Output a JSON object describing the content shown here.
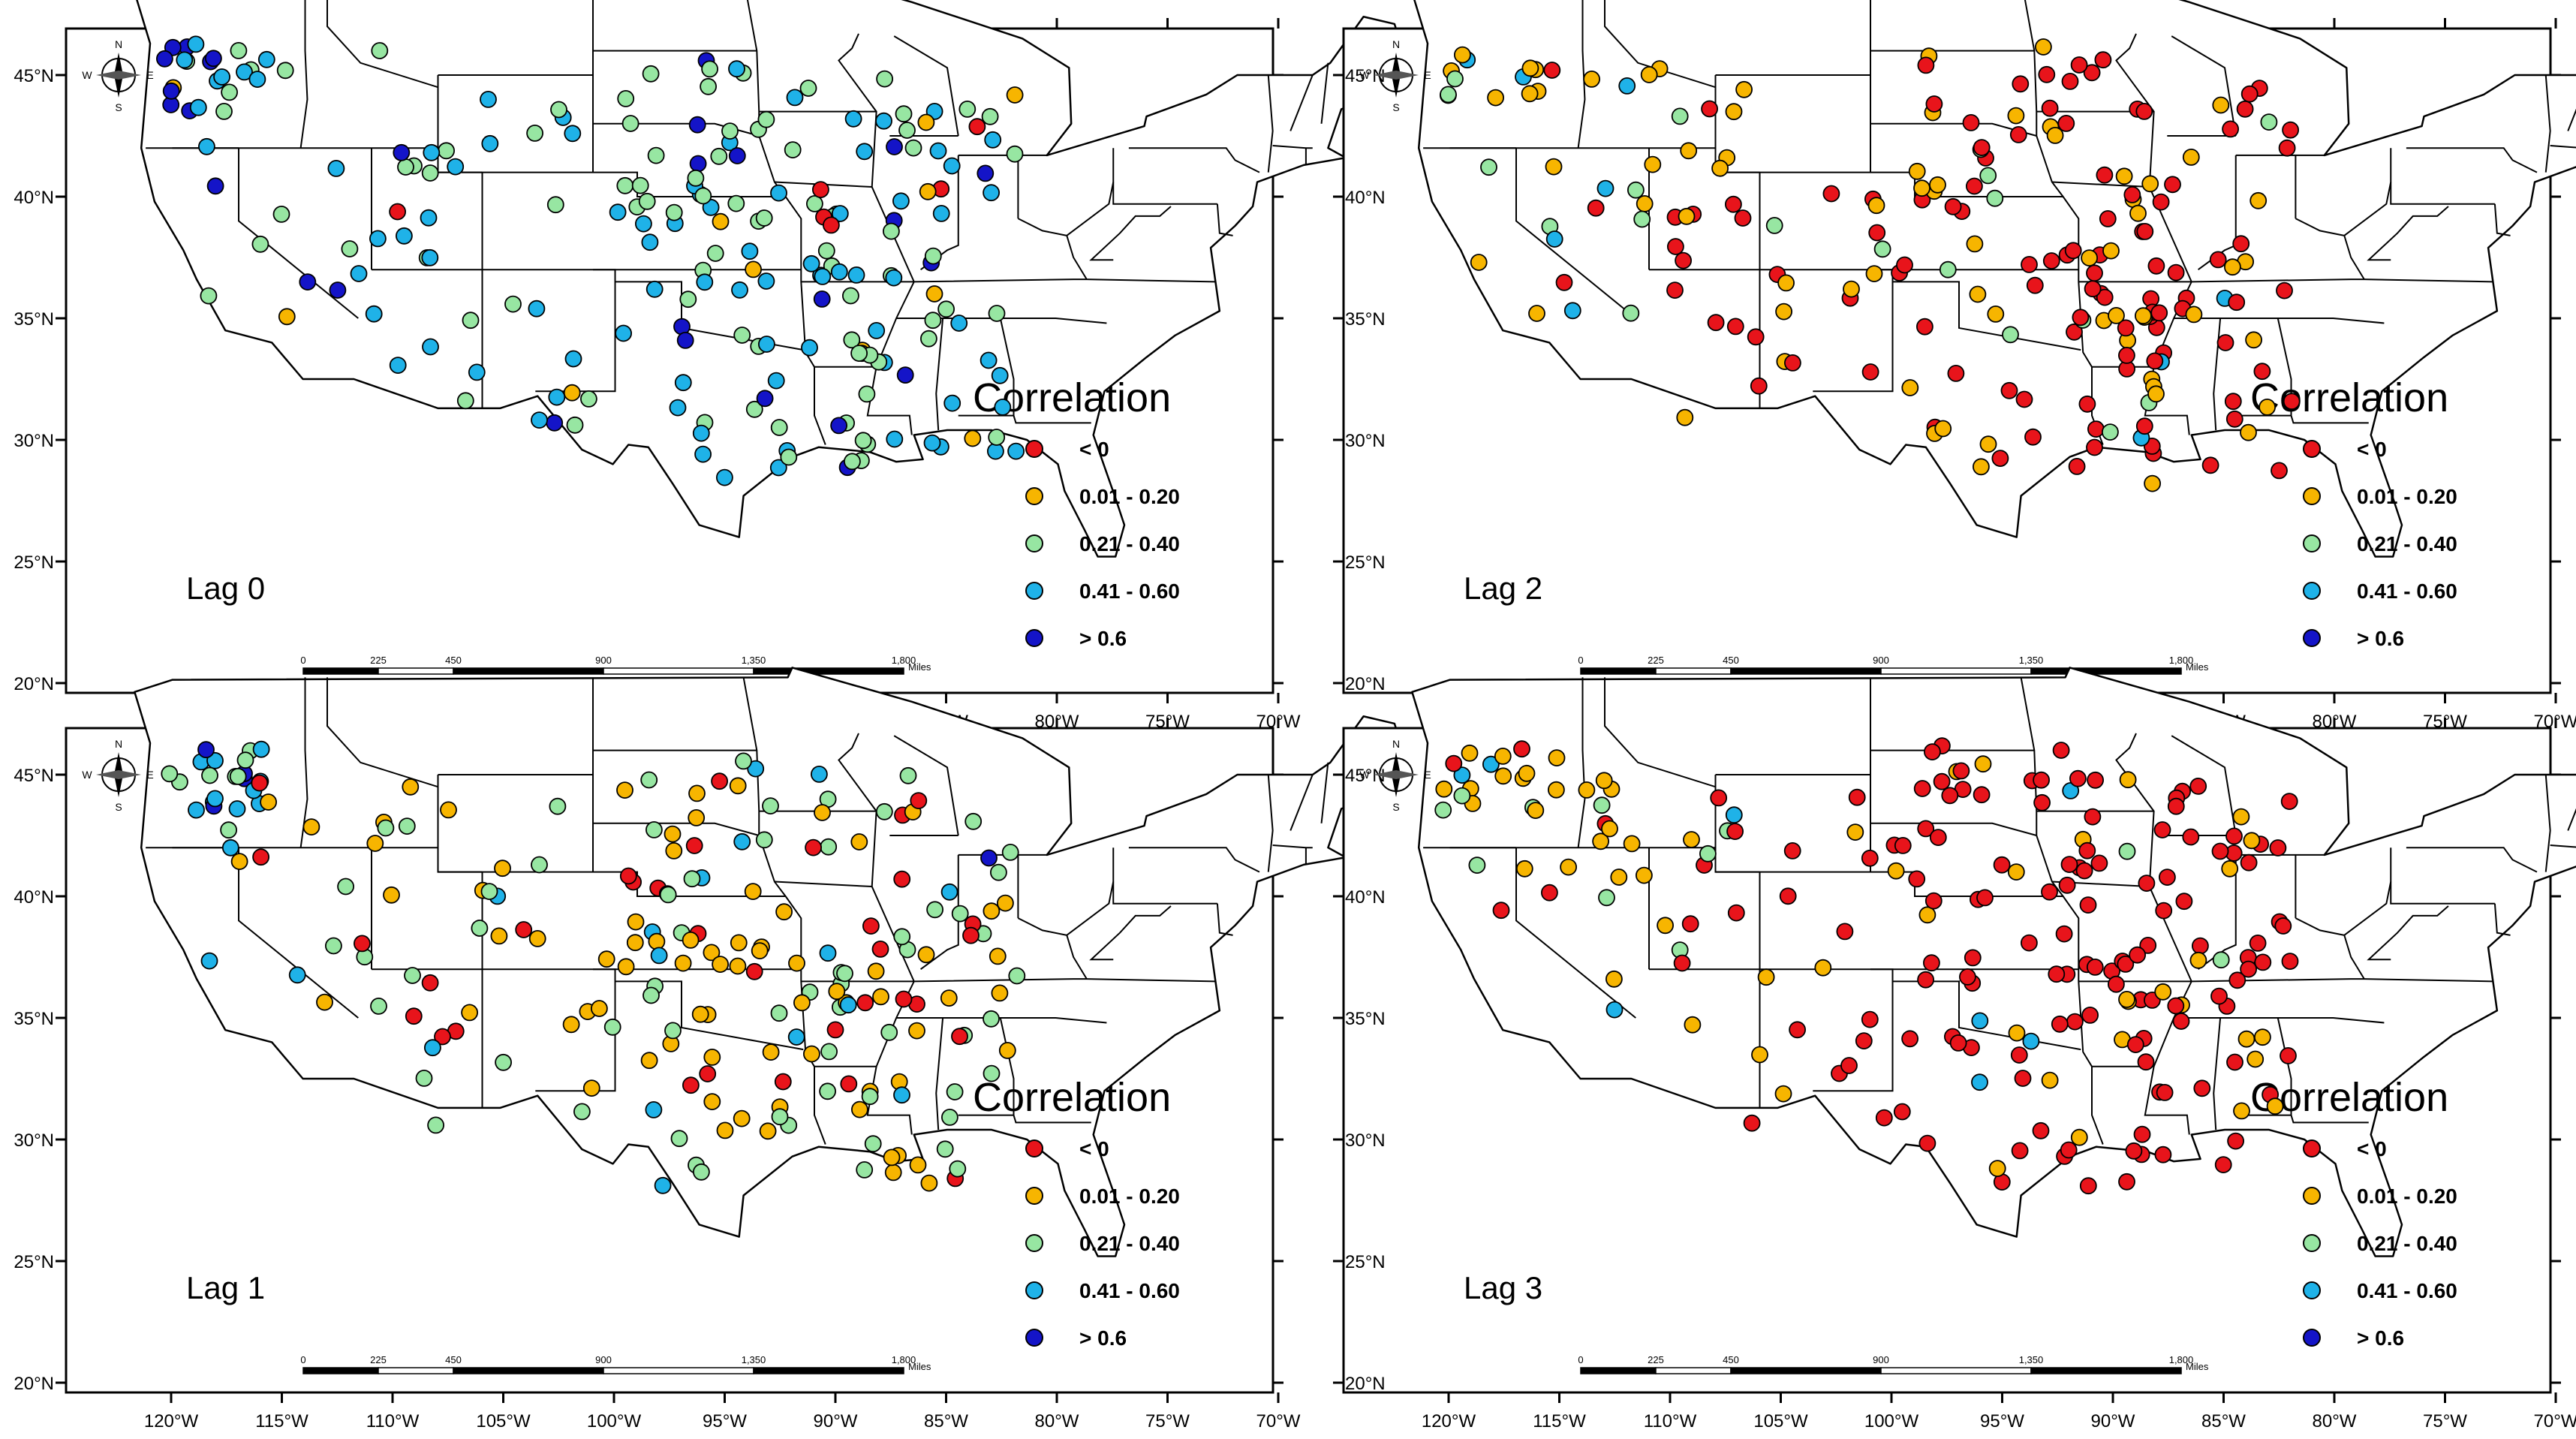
{
  "figure": {
    "panels": [
      {
        "id": "lag0",
        "label": "Lag 0",
        "palette": {
          "red": 0.08,
          "orange": 0.04,
          "green": 0.4,
          "cyan": 0.38,
          "blue": 0.1
        },
        "regional_bias": "west_blue"
      },
      {
        "id": "lag2",
        "label": "Lag 2",
        "palette": {
          "red": 0.62,
          "orange": 0.3,
          "green": 0.06,
          "cyan": 0.02,
          "blue": 0
        },
        "regional_bias": "east_red"
      },
      {
        "id": "lag1",
        "label": "Lag 1",
        "palette": {
          "red": 0.14,
          "orange": 0.42,
          "green": 0.34,
          "cyan": 0.08,
          "blue": 0.02
        },
        "regional_bias": "mixed"
      },
      {
        "id": "lag3",
        "label": "Lag 3",
        "palette": {
          "red": 0.72,
          "orange": 0.22,
          "green": 0.04,
          "cyan": 0.02,
          "blue": 0
        },
        "regional_bias": "east_red"
      }
    ],
    "legend": {
      "title": "Correlation",
      "items": [
        {
          "label": "< 0",
          "color": "#e8141b"
        },
        {
          "label": "0.01 - 0.20",
          "color": "#f7b500"
        },
        {
          "label": "0.21 - 0.40",
          "color": "#97e6a2"
        },
        {
          "label": "0.41 - 0.60",
          "color": "#1fb2e8"
        },
        {
          "label": "> 0.6",
          "color": "#1414c8"
        }
      ]
    },
    "lat_labels": [
      "45°N",
      "40°N",
      "35°N",
      "30°N",
      "25°N",
      "20°N"
    ],
    "lon_labels": [
      "120°W",
      "115°W",
      "110°W",
      "105°W",
      "100°W",
      "95°W",
      "90°W",
      "85°W",
      "80°W",
      "75°W",
      "70°W"
    ],
    "scalebar": {
      "ticks": [
        "0",
        "225",
        "450",
        "900",
        "1,350",
        "1,800"
      ],
      "unit": "Miles"
    },
    "compass": {
      "n": "N",
      "s": "S",
      "e": "E",
      "w": "W"
    }
  }
}
